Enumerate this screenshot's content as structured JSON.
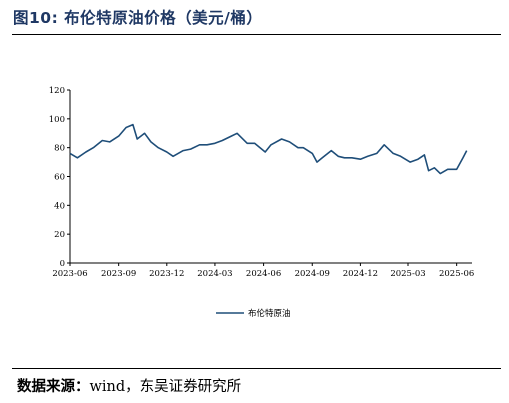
{
  "figure": {
    "title": "图10:  布伦特原油价格（美元/桶）",
    "source_label": "数据来源：",
    "source_value": "wind，东吴证券研究所"
  },
  "colors": {
    "line": "#1f4e79",
    "axis": "#000000",
    "title": "#1f3864"
  },
  "chart_data": {
    "type": "line",
    "title": "",
    "xlabel": "",
    "ylabel": "",
    "ylim": [
      0,
      120
    ],
    "yticks": [
      0,
      20,
      40,
      60,
      80,
      100,
      120
    ],
    "xlim": [
      "2023-06-01",
      "2025-06-30"
    ],
    "xticks": [
      "2023-06",
      "2023-09",
      "2023-12",
      "2024-03",
      "2024-06",
      "2024-09",
      "2024-12",
      "2025-03",
      "2025-06"
    ],
    "grid": false,
    "legend": "bottom-center",
    "series": [
      {
        "name": "布伦特原油",
        "x": [
          "2023-06-01",
          "2023-06-15",
          "2023-07-01",
          "2023-07-15",
          "2023-08-01",
          "2023-08-15",
          "2023-09-01",
          "2023-09-15",
          "2023-09-28",
          "2023-10-06",
          "2023-10-20",
          "2023-11-01",
          "2023-11-15",
          "2023-12-01",
          "2023-12-13",
          "2024-01-01",
          "2024-01-15",
          "2024-02-01",
          "2024-02-15",
          "2024-03-01",
          "2024-03-15",
          "2024-04-01",
          "2024-04-12",
          "2024-05-01",
          "2024-05-15",
          "2024-06-04",
          "2024-06-15",
          "2024-07-05",
          "2024-07-20",
          "2024-08-05",
          "2024-08-15",
          "2024-09-01",
          "2024-09-10",
          "2024-09-20",
          "2024-10-07",
          "2024-10-20",
          "2024-11-01",
          "2024-11-15",
          "2024-12-01",
          "2024-12-15",
          "2025-01-01",
          "2025-01-15",
          "2025-02-01",
          "2025-02-15",
          "2025-03-05",
          "2025-03-20",
          "2025-04-01",
          "2025-04-09",
          "2025-04-20",
          "2025-05-01",
          "2025-05-15",
          "2025-06-01",
          "2025-06-13",
          "2025-06-20"
        ],
        "values": [
          76,
          73,
          77,
          80,
          85,
          84,
          88,
          94,
          96,
          86,
          90,
          84,
          80,
          77,
          74,
          78,
          79,
          82,
          82,
          83,
          85,
          88,
          90,
          83,
          83,
          77,
          82,
          86,
          84,
          80,
          80,
          76,
          70,
          73,
          78,
          74,
          73,
          73,
          72,
          74,
          76,
          82,
          76,
          74,
          70,
          72,
          75,
          64,
          66,
          62,
          65,
          65,
          73,
          78
        ]
      }
    ]
  }
}
